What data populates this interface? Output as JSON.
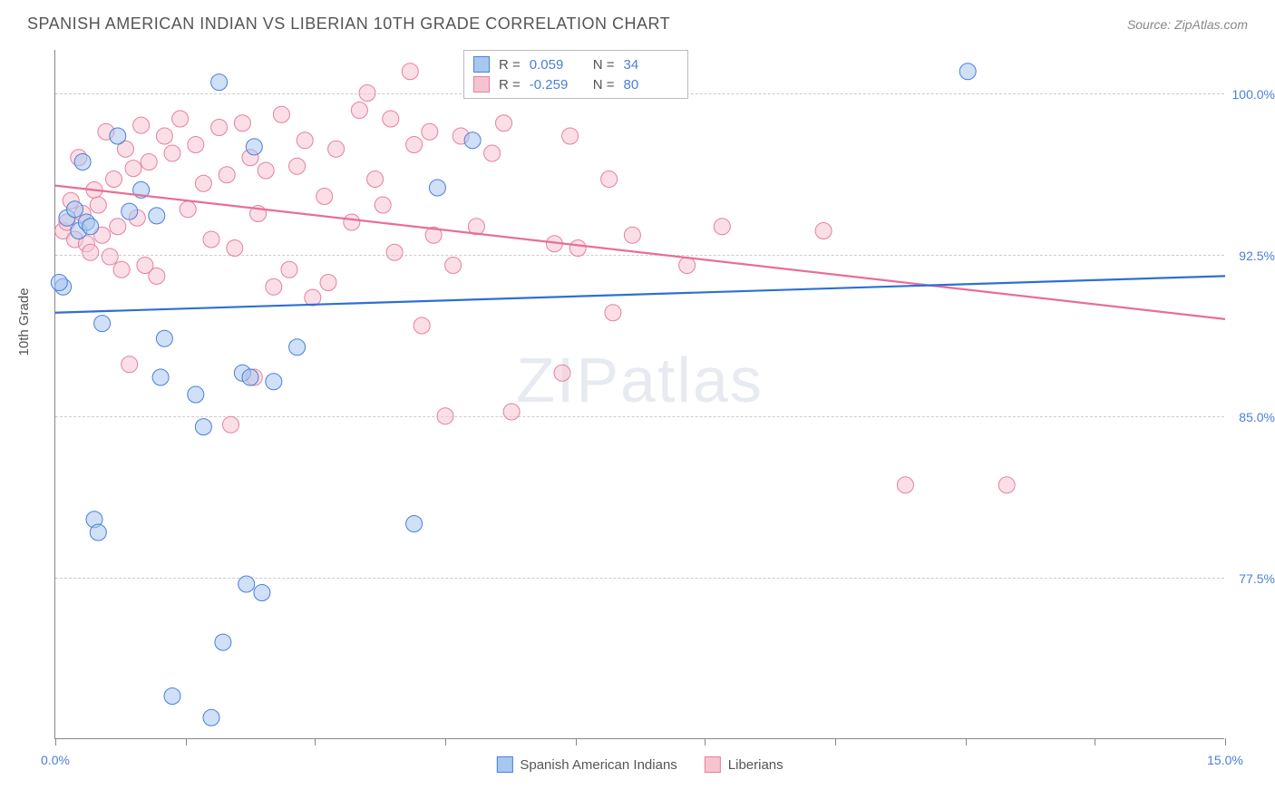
{
  "header": {
    "title": "SPANISH AMERICAN INDIAN VS LIBERIAN 10TH GRADE CORRELATION CHART",
    "source": "Source: ZipAtlas.com"
  },
  "axes": {
    "ylabel": "10th Grade",
    "xlim": [
      0,
      15
    ],
    "ylim": [
      70,
      102
    ],
    "xtick_label_min": "0.0%",
    "xtick_label_max": "15.0%",
    "xtick_positions": [
      0,
      1.67,
      3.33,
      5.0,
      6.67,
      8.33,
      10.0,
      11.67,
      13.33,
      15.0
    ],
    "yticks": [
      {
        "v": 100.0,
        "label": "100.0%"
      },
      {
        "v": 92.5,
        "label": "92.5%"
      },
      {
        "v": 85.0,
        "label": "85.0%"
      },
      {
        "v": 77.5,
        "label": "77.5%"
      }
    ]
  },
  "series": {
    "blue": {
      "name": "Spanish American Indians",
      "fill": "#a7c7f0",
      "stroke": "#4a7fd8",
      "line_color": "#2e6fd6",
      "r_value": "0.059",
      "n_value": "34",
      "regression": {
        "x1": 0,
        "y1": 89.8,
        "x2": 15,
        "y2": 91.5
      },
      "points": [
        [
          0.1,
          91.0
        ],
        [
          0.15,
          94.2
        ],
        [
          0.25,
          94.6
        ],
        [
          0.3,
          93.6
        ],
        [
          0.35,
          96.8
        ],
        [
          0.4,
          94.0
        ],
        [
          0.45,
          93.8
        ],
        [
          0.5,
          80.2
        ],
        [
          0.55,
          79.6
        ],
        [
          0.6,
          89.3
        ],
        [
          0.8,
          98.0
        ],
        [
          0.95,
          94.5
        ],
        [
          1.1,
          95.5
        ],
        [
          1.3,
          94.3
        ],
        [
          1.35,
          86.8
        ],
        [
          1.4,
          88.6
        ],
        [
          1.5,
          72.0
        ],
        [
          1.8,
          86.0
        ],
        [
          1.9,
          84.5
        ],
        [
          2.0,
          71.0
        ],
        [
          2.1,
          100.5
        ],
        [
          2.15,
          74.5
        ],
        [
          2.4,
          87.0
        ],
        [
          2.45,
          77.2
        ],
        [
          2.5,
          86.8
        ],
        [
          2.55,
          97.5
        ],
        [
          2.65,
          76.8
        ],
        [
          2.8,
          86.6
        ],
        [
          3.1,
          88.2
        ],
        [
          4.6,
          80.0
        ],
        [
          4.9,
          95.6
        ],
        [
          5.35,
          97.8
        ],
        [
          11.7,
          101.0
        ],
        [
          0.05,
          91.2
        ]
      ]
    },
    "pink": {
      "name": "Liberians",
      "fill": "#f6c4d1",
      "stroke": "#e87fa0",
      "line_color": "#e86f95",
      "r_value": "-0.259",
      "n_value": "80",
      "regression": {
        "x1": 0,
        "y1": 95.7,
        "x2": 15,
        "y2": 89.5
      },
      "points": [
        [
          0.1,
          93.6
        ],
        [
          0.15,
          94.0
        ],
        [
          0.2,
          95.0
        ],
        [
          0.25,
          93.2
        ],
        [
          0.3,
          97.0
        ],
        [
          0.35,
          94.4
        ],
        [
          0.4,
          93.0
        ],
        [
          0.45,
          92.6
        ],
        [
          0.5,
          95.5
        ],
        [
          0.55,
          94.8
        ],
        [
          0.6,
          93.4
        ],
        [
          0.65,
          98.2
        ],
        [
          0.7,
          92.4
        ],
        [
          0.75,
          96.0
        ],
        [
          0.8,
          93.8
        ],
        [
          0.85,
          91.8
        ],
        [
          0.9,
          97.4
        ],
        [
          0.95,
          87.4
        ],
        [
          1.0,
          96.5
        ],
        [
          1.05,
          94.2
        ],
        [
          1.1,
          98.5
        ],
        [
          1.2,
          96.8
        ],
        [
          1.3,
          91.5
        ],
        [
          1.4,
          98.0
        ],
        [
          1.5,
          97.2
        ],
        [
          1.6,
          98.8
        ],
        [
          1.7,
          94.6
        ],
        [
          1.8,
          97.6
        ],
        [
          1.9,
          95.8
        ],
        [
          2.0,
          93.2
        ],
        [
          2.1,
          98.4
        ],
        [
          2.2,
          96.2
        ],
        [
          2.25,
          84.6
        ],
        [
          2.3,
          92.8
        ],
        [
          2.4,
          98.6
        ],
        [
          2.5,
          97.0
        ],
        [
          2.55,
          86.8
        ],
        [
          2.6,
          94.4
        ],
        [
          2.7,
          96.4
        ],
        [
          2.8,
          91.0
        ],
        [
          2.9,
          99.0
        ],
        [
          3.0,
          91.8
        ],
        [
          3.1,
          96.6
        ],
        [
          3.2,
          97.8
        ],
        [
          3.3,
          90.5
        ],
        [
          3.45,
          95.2
        ],
        [
          3.6,
          97.4
        ],
        [
          3.8,
          94.0
        ],
        [
          3.9,
          99.2
        ],
        [
          4.0,
          100.0
        ],
        [
          4.1,
          96.0
        ],
        [
          4.2,
          94.8
        ],
        [
          4.3,
          98.8
        ],
        [
          4.35,
          92.6
        ],
        [
          4.55,
          101.0
        ],
        [
          4.6,
          97.6
        ],
        [
          4.7,
          89.2
        ],
        [
          4.8,
          98.2
        ],
        [
          4.85,
          93.4
        ],
        [
          5.0,
          85.0
        ],
        [
          5.1,
          92.0
        ],
        [
          5.2,
          98.0
        ],
        [
          5.4,
          93.8
        ],
        [
          5.6,
          97.2
        ],
        [
          5.75,
          98.6
        ],
        [
          5.85,
          85.2
        ],
        [
          6.4,
          93.0
        ],
        [
          6.5,
          87.0
        ],
        [
          6.6,
          98.0
        ],
        [
          6.7,
          92.8
        ],
        [
          7.1,
          96.0
        ],
        [
          7.15,
          89.8
        ],
        [
          7.4,
          93.4
        ],
        [
          8.1,
          92.0
        ],
        [
          8.55,
          93.8
        ],
        [
          9.85,
          93.6
        ],
        [
          10.9,
          81.8
        ],
        [
          12.2,
          81.8
        ],
        [
          3.5,
          91.2
        ],
        [
          1.15,
          92.0
        ]
      ]
    }
  },
  "legend_stats": {
    "r_label": "R =",
    "n_label": "N ="
  },
  "watermark": {
    "part1": "ZIP",
    "part2": "atlas"
  },
  "style": {
    "background": "#ffffff",
    "grid_color": "#cccccc",
    "axis_color": "#888888",
    "text_color": "#555555",
    "value_color": "#4a7fd8",
    "marker_radius": 9,
    "marker_opacity": 0.55,
    "line_width": 2.2,
    "title_fontsize": 18,
    "label_fontsize": 15,
    "tick_fontsize": 14
  }
}
